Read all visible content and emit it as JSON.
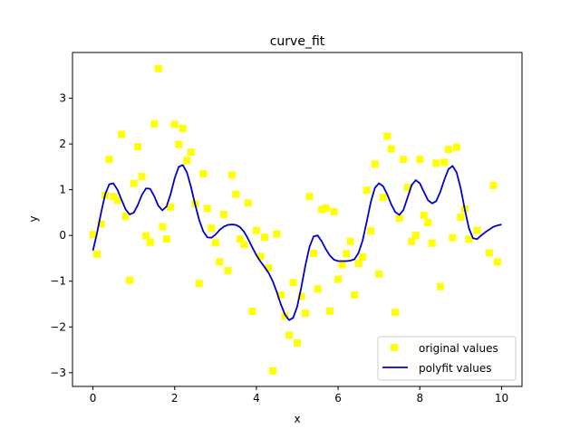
{
  "chart_data": {
    "type": "scatter",
    "title": "curve_fit",
    "xlabel": "x",
    "ylabel": "y",
    "xlim": [
      -0.5,
      10.5
    ],
    "ylim": [
      -3.3,
      4.0
    ],
    "xticks": [
      0,
      2,
      4,
      6,
      8,
      10
    ],
    "yticks": [
      -3,
      -2,
      -1,
      0,
      1,
      2,
      3
    ],
    "grid": false,
    "legend_position": "bottom-right",
    "series": [
      {
        "name": "original values",
        "kind": "scatter",
        "marker": "square",
        "color": "#ffff00",
        "points": [
          [
            0.0,
            0.02
          ],
          [
            0.1,
            -0.41
          ],
          [
            0.2,
            0.25
          ],
          [
            0.3,
            0.88
          ],
          [
            0.4,
            1.66
          ],
          [
            0.5,
            0.85
          ],
          [
            0.6,
            0.77
          ],
          [
            0.7,
            2.21
          ],
          [
            0.8,
            0.42
          ],
          [
            0.9,
            -0.98
          ],
          [
            1.0,
            1.14
          ],
          [
            1.1,
            1.94
          ],
          [
            1.2,
            1.29
          ],
          [
            1.3,
            -0.01
          ],
          [
            1.4,
            -0.15
          ],
          [
            1.5,
            2.44
          ],
          [
            1.6,
            3.65
          ],
          [
            1.7,
            0.19
          ],
          [
            1.8,
            -0.08
          ],
          [
            1.9,
            0.62
          ],
          [
            2.0,
            2.43
          ],
          [
            2.1,
            1.99
          ],
          [
            2.2,
            2.34
          ],
          [
            2.3,
            1.64
          ],
          [
            2.4,
            1.82
          ],
          [
            2.5,
            0.69
          ],
          [
            2.6,
            -1.05
          ],
          [
            2.7,
            1.35
          ],
          [
            2.8,
            0.59
          ],
          [
            2.9,
            0.16
          ],
          [
            3.0,
            -0.16
          ],
          [
            3.1,
            -0.58
          ],
          [
            3.2,
            0.46
          ],
          [
            3.3,
            -0.77
          ],
          [
            3.4,
            1.32
          ],
          [
            3.5,
            0.9
          ],
          [
            3.6,
            -0.08
          ],
          [
            3.7,
            -0.2
          ],
          [
            3.8,
            0.71
          ],
          [
            3.9,
            -1.66
          ],
          [
            4.0,
            0.11
          ],
          [
            4.1,
            -0.46
          ],
          [
            4.2,
            -0.04
          ],
          [
            4.3,
            -0.71
          ],
          [
            4.4,
            -2.96
          ],
          [
            4.5,
            0.03
          ],
          [
            4.6,
            -1.3
          ],
          [
            4.7,
            -1.76
          ],
          [
            4.8,
            -2.18
          ],
          [
            4.9,
            -1.03
          ],
          [
            5.0,
            -2.35
          ],
          [
            5.1,
            -1.33
          ],
          [
            5.2,
            -1.7
          ],
          [
            5.3,
            0.85
          ],
          [
            5.4,
            -0.39
          ],
          [
            5.5,
            -1.17
          ],
          [
            5.6,
            0.57
          ],
          [
            5.7,
            0.6
          ],
          [
            5.8,
            -1.65
          ],
          [
            5.9,
            0.52
          ],
          [
            6.0,
            -0.96
          ],
          [
            6.1,
            -0.64
          ],
          [
            6.2,
            -0.4
          ],
          [
            6.3,
            -0.13
          ],
          [
            6.4,
            -1.3
          ],
          [
            6.5,
            -0.61
          ],
          [
            6.6,
            -0.47
          ],
          [
            6.7,
            0.99
          ],
          [
            6.8,
            0.1
          ],
          [
            6.9,
            1.56
          ],
          [
            7.0,
            -0.84
          ],
          [
            7.1,
            0.83
          ],
          [
            7.2,
            2.17
          ],
          [
            7.3,
            1.89
          ],
          [
            7.4,
            -1.68
          ],
          [
            7.5,
            0.38
          ],
          [
            7.6,
            1.66
          ],
          [
            7.7,
            1.05
          ],
          [
            7.8,
            -0.13
          ],
          [
            7.9,
            -0.0
          ],
          [
            8.0,
            1.66
          ],
          [
            8.1,
            0.44
          ],
          [
            8.2,
            0.28
          ],
          [
            8.3,
            -0.17
          ],
          [
            8.4,
            1.58
          ],
          [
            8.5,
            -1.12
          ],
          [
            8.6,
            1.6
          ],
          [
            8.7,
            1.88
          ],
          [
            8.8,
            -0.05
          ],
          [
            8.9,
            1.93
          ],
          [
            9.0,
            0.4
          ],
          [
            9.1,
            0.58
          ],
          [
            9.2,
            -0.08
          ],
          [
            9.4,
            0.11
          ],
          [
            9.7,
            -0.38
          ],
          [
            9.8,
            1.09
          ],
          [
            9.9,
            -0.58
          ]
        ]
      },
      {
        "name": "polyfit values",
        "kind": "line",
        "color": "#0000cc",
        "points": [
          [
            0.0,
            -0.33
          ],
          [
            0.1,
            0.05
          ],
          [
            0.2,
            0.5
          ],
          [
            0.3,
            0.9
          ],
          [
            0.4,
            1.12
          ],
          [
            0.5,
            1.14
          ],
          [
            0.6,
            1.0
          ],
          [
            0.7,
            0.78
          ],
          [
            0.8,
            0.57
          ],
          [
            0.9,
            0.46
          ],
          [
            1.0,
            0.5
          ],
          [
            1.1,
            0.67
          ],
          [
            1.2,
            0.89
          ],
          [
            1.3,
            1.03
          ],
          [
            1.4,
            1.02
          ],
          [
            1.5,
            0.86
          ],
          [
            1.6,
            0.65
          ],
          [
            1.7,
            0.55
          ],
          [
            1.8,
            0.63
          ],
          [
            1.9,
            0.9
          ],
          [
            2.0,
            1.25
          ],
          [
            2.1,
            1.5
          ],
          [
            2.2,
            1.54
          ],
          [
            2.3,
            1.38
          ],
          [
            2.4,
            1.06
          ],
          [
            2.5,
            0.68
          ],
          [
            2.6,
            0.34
          ],
          [
            2.7,
            0.09
          ],
          [
            2.8,
            -0.04
          ],
          [
            2.9,
            -0.05
          ],
          [
            3.0,
            0.02
          ],
          [
            3.1,
            0.12
          ],
          [
            3.2,
            0.19
          ],
          [
            3.3,
            0.23
          ],
          [
            3.4,
            0.24
          ],
          [
            3.5,
            0.23
          ],
          [
            3.6,
            0.18
          ],
          [
            3.7,
            0.08
          ],
          [
            3.8,
            -0.08
          ],
          [
            3.9,
            -0.26
          ],
          [
            4.0,
            -0.43
          ],
          [
            4.1,
            -0.57
          ],
          [
            4.2,
            -0.69
          ],
          [
            4.3,
            -0.82
          ],
          [
            4.4,
            -1.0
          ],
          [
            4.5,
            -1.24
          ],
          [
            4.6,
            -1.51
          ],
          [
            4.7,
            -1.73
          ],
          [
            4.8,
            -1.85
          ],
          [
            4.9,
            -1.8
          ],
          [
            5.0,
            -1.55
          ],
          [
            5.1,
            -1.13
          ],
          [
            5.2,
            -0.65
          ],
          [
            5.3,
            -0.25
          ],
          [
            5.4,
            -0.02
          ],
          [
            5.5,
            0.0
          ],
          [
            5.6,
            -0.13
          ],
          [
            5.7,
            -0.3
          ],
          [
            5.8,
            -0.44
          ],
          [
            5.9,
            -0.53
          ],
          [
            6.0,
            -0.56
          ],
          [
            6.1,
            -0.56
          ],
          [
            6.2,
            -0.56
          ],
          [
            6.3,
            -0.55
          ],
          [
            6.4,
            -0.52
          ],
          [
            6.5,
            -0.38
          ],
          [
            6.6,
            -0.11
          ],
          [
            6.7,
            0.3
          ],
          [
            6.8,
            0.73
          ],
          [
            6.9,
            1.04
          ],
          [
            7.0,
            1.14
          ],
          [
            7.1,
            1.08
          ],
          [
            7.2,
            0.9
          ],
          [
            7.3,
            0.68
          ],
          [
            7.4,
            0.51
          ],
          [
            7.5,
            0.45
          ],
          [
            7.6,
            0.56
          ],
          [
            7.7,
            0.83
          ],
          [
            7.8,
            1.1
          ],
          [
            7.9,
            1.21
          ],
          [
            8.0,
            1.14
          ],
          [
            8.1,
            0.95
          ],
          [
            8.2,
            0.77
          ],
          [
            8.3,
            0.7
          ],
          [
            8.4,
            0.75
          ],
          [
            8.5,
            0.95
          ],
          [
            8.6,
            1.22
          ],
          [
            8.7,
            1.45
          ],
          [
            8.8,
            1.52
          ],
          [
            8.9,
            1.38
          ],
          [
            9.0,
            1.03
          ],
          [
            9.1,
            0.57
          ],
          [
            9.2,
            0.16
          ],
          [
            9.3,
            -0.06
          ],
          [
            9.4,
            -0.08
          ],
          [
            9.5,
            0.0
          ],
          [
            9.6,
            0.07
          ],
          [
            9.7,
            0.13
          ],
          [
            9.8,
            0.19
          ],
          [
            9.9,
            0.22
          ],
          [
            10.0,
            0.24
          ]
        ]
      }
    ]
  }
}
